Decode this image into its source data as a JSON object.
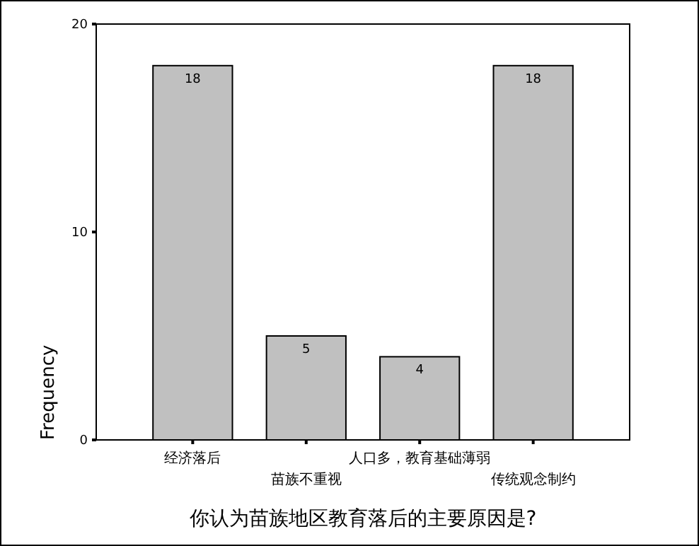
{
  "chart_data": {
    "type": "bar",
    "xlabel": "你认为苗族地区教育落后的主要原因是?",
    "ylabel": "Frequency",
    "categories": [
      "经济落后",
      "苗族不重视",
      "人口多，教育基础薄弱",
      "传统观念制约"
    ],
    "values": [
      18,
      5,
      4,
      18
    ],
    "color": "#c0c0c0",
    "ylim": [
      0,
      20
    ],
    "yticks": [
      0,
      10,
      20
    ],
    "data_labels": true
  }
}
